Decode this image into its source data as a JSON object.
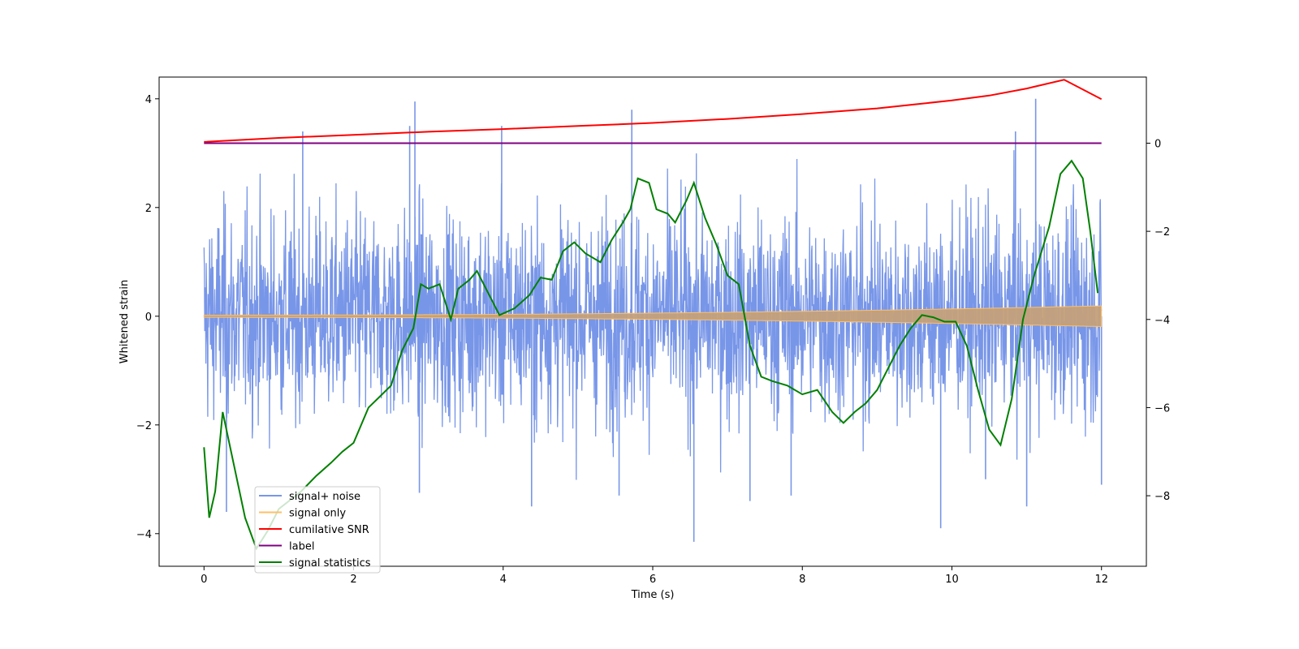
{
  "chart_data": {
    "type": "line",
    "title": "",
    "xlabel": "Time (s)",
    "ylabel": "Whitened strain",
    "y2label": "",
    "xlim": [
      -0.6,
      12.6
    ],
    "ylim": [
      -4.6,
      4.4
    ],
    "y2lim": [
      -9.6,
      1.5
    ],
    "xticks": [
      0,
      2,
      4,
      6,
      8,
      10,
      12
    ],
    "yticks": [
      -4,
      -2,
      0,
      2,
      4
    ],
    "y2ticks": [
      -8,
      -6,
      -4,
      -2,
      0
    ],
    "grid": false,
    "legend_position": "lower-left",
    "series": [
      {
        "name": "signal+ noise",
        "axis": "left",
        "color": "#7896e8",
        "style": "noise",
        "x_range": [
          0,
          12
        ],
        "typical_band": [
          -1.9,
          1.9
        ],
        "spikes": [
          {
            "x": 2.82,
            "y": 3.95
          },
          {
            "x": 2.75,
            "y": 3.5
          },
          {
            "x": 1.32,
            "y": 3.4
          },
          {
            "x": 5.72,
            "y": 3.8
          },
          {
            "x": 3.98,
            "y": 3.5
          },
          {
            "x": 11.12,
            "y": 4.0
          },
          {
            "x": 10.85,
            "y": 3.4
          },
          {
            "x": 6.55,
            "y": -4.15
          },
          {
            "x": 9.85,
            "y": -3.9
          },
          {
            "x": 4.38,
            "y": -3.5
          },
          {
            "x": 11.0,
            "y": -3.5
          },
          {
            "x": 5.55,
            "y": -3.3
          },
          {
            "x": 2.88,
            "y": -3.25
          },
          {
            "x": 7.85,
            "y": -3.3
          },
          {
            "x": 0.3,
            "y": -3.6
          },
          {
            "x": 12.0,
            "y": -3.1
          },
          {
            "x": 7.3,
            "y": -3.4
          },
          {
            "x": 10.45,
            "y": -3.0
          }
        ]
      },
      {
        "name": "signal only",
        "axis": "left",
        "color": "#ffbf66",
        "style": "chirp",
        "x_range": [
          0,
          12
        ],
        "amplitude_start": 0.02,
        "amplitude_end": 0.19
      },
      {
        "name": "cumilative SNR",
        "axis": "right",
        "color": "#ff0000",
        "x": [
          0,
          1,
          2,
          3,
          4,
          5,
          6,
          7,
          8,
          9,
          10,
          10.5,
          11,
          11.5,
          12
        ],
        "y": [
          0.03,
          0.12,
          0.19,
          0.26,
          0.32,
          0.39,
          0.46,
          0.55,
          0.66,
          0.79,
          0.97,
          1.08,
          1.24,
          1.44,
          1.0
        ]
      },
      {
        "name": "label",
        "axis": "right",
        "color": "#800080",
        "x": [
          0,
          12
        ],
        "y": [
          0,
          0
        ]
      },
      {
        "name": "signal statistics",
        "axis": "right",
        "color": "#008000",
        "x": [
          0.0,
          0.07,
          0.15,
          0.25,
          0.4,
          0.55,
          0.7,
          0.85,
          1.0,
          1.15,
          1.3,
          1.5,
          1.7,
          1.85,
          2.0,
          2.2,
          2.35,
          2.5,
          2.65,
          2.8,
          2.9,
          3.0,
          3.15,
          3.3,
          3.4,
          3.55,
          3.65,
          3.8,
          3.95,
          4.15,
          4.35,
          4.5,
          4.65,
          4.8,
          4.95,
          5.1,
          5.3,
          5.45,
          5.6,
          5.7,
          5.8,
          5.95,
          6.05,
          6.2,
          6.3,
          6.45,
          6.55,
          6.7,
          6.85,
          7.0,
          7.15,
          7.3,
          7.45,
          7.6,
          7.8,
          8.0,
          8.2,
          8.4,
          8.55,
          8.7,
          8.85,
          9.0,
          9.15,
          9.3,
          9.45,
          9.6,
          9.75,
          9.9,
          10.05,
          10.2,
          10.35,
          10.5,
          10.65,
          10.8,
          10.95,
          11.1,
          11.3,
          11.45,
          11.6,
          11.75,
          11.85,
          11.95
        ],
        "y": [
          -6.9,
          -8.5,
          -7.9,
          -6.1,
          -7.3,
          -8.5,
          -9.2,
          -8.8,
          -8.3,
          -8.1,
          -7.9,
          -7.55,
          -7.25,
          -7.0,
          -6.8,
          -6.0,
          -5.75,
          -5.5,
          -4.7,
          -4.2,
          -3.2,
          -3.3,
          -3.2,
          -4.0,
          -3.3,
          -3.1,
          -2.9,
          -3.4,
          -3.9,
          -3.75,
          -3.45,
          -3.05,
          -3.1,
          -2.45,
          -2.25,
          -2.5,
          -2.7,
          -2.2,
          -1.8,
          -1.5,
          -0.8,
          -0.9,
          -1.5,
          -1.6,
          -1.8,
          -1.3,
          -0.9,
          -1.7,
          -2.3,
          -3.0,
          -3.2,
          -4.6,
          -5.3,
          -5.4,
          -5.5,
          -5.7,
          -5.6,
          -6.1,
          -6.35,
          -6.1,
          -5.9,
          -5.6,
          -5.1,
          -4.6,
          -4.2,
          -3.9,
          -3.95,
          -4.05,
          -4.05,
          -4.6,
          -5.6,
          -6.5,
          -6.85,
          -5.8,
          -4.0,
          -3.0,
          -1.9,
          -0.7,
          -0.4,
          -0.8,
          -2.0,
          -3.4
        ]
      }
    ]
  }
}
